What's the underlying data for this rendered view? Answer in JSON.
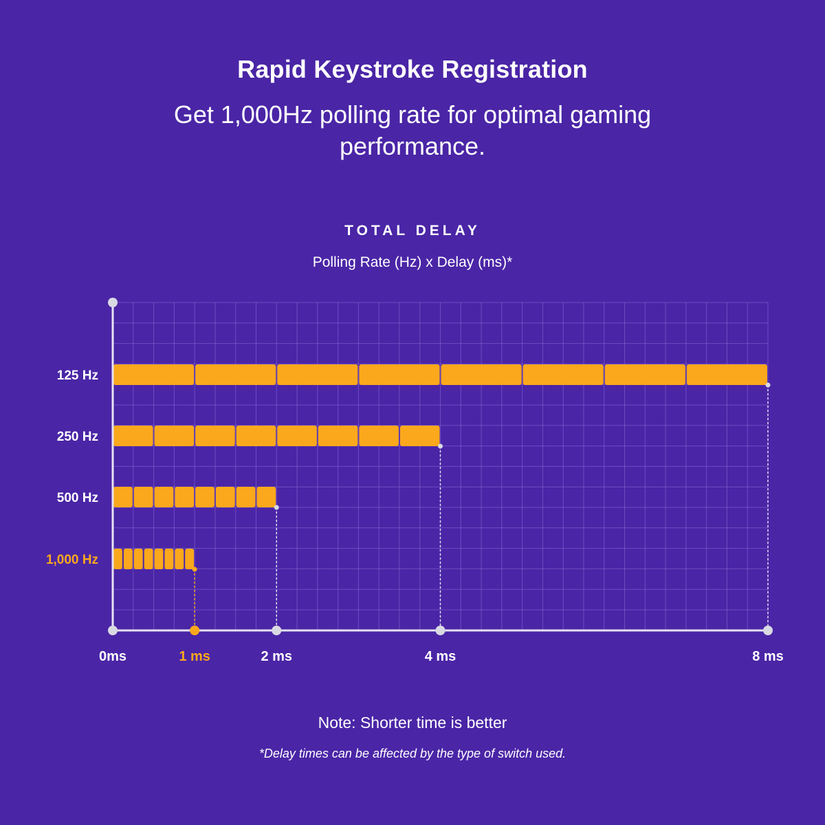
{
  "header": {
    "title": "Rapid Keystroke Registration",
    "subtitle": "Get 1,000Hz polling rate for optimal gaming performance."
  },
  "chart_data": {
    "type": "bar",
    "title": "TOTAL DELAY",
    "subtitle": "Polling Rate (Hz) x Delay (ms)*",
    "categories": [
      "125 Hz",
      "250 Hz",
      "500 Hz",
      "1,000 Hz"
    ],
    "values": [
      8,
      4,
      2,
      1
    ],
    "segments_per_bar": 8,
    "x_ticks": [
      {
        "value": 0,
        "label": "0ms"
      },
      {
        "value": 1,
        "label": "1 ms"
      },
      {
        "value": 2,
        "label": "2 ms"
      },
      {
        "value": 4,
        "label": "4 ms"
      },
      {
        "value": 8,
        "label": "8 ms"
      }
    ],
    "xlim": [
      0,
      8
    ],
    "highlight_category": "1,000 Hz",
    "highlight_tick": "1 ms",
    "grid": true,
    "colors": {
      "background": "#4a25a6",
      "bar": "#fca81c",
      "bar_border": "#5a2e9e",
      "highlight_label": "#fca81c",
      "grid": "#8a6fd6",
      "axis": "#e6e3f0",
      "axis_dot": "#d9d9e3"
    }
  },
  "footer": {
    "note": "Note: Shorter time is better",
    "footnote": "*Delay times can be affected by the type of switch used."
  }
}
